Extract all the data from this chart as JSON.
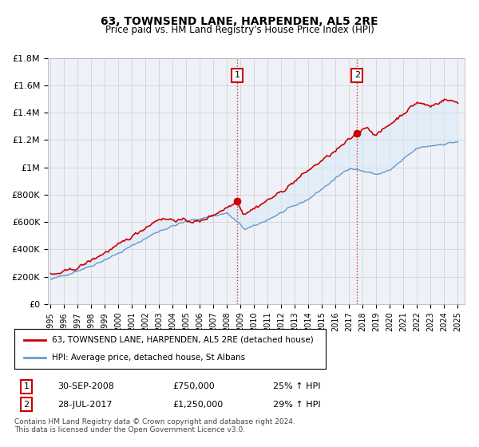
{
  "title": "63, TOWNSEND LANE, HARPENDEN, AL5 2RE",
  "subtitle": "Price paid vs. HM Land Registry's House Price Index (HPI)",
  "ylim": [
    0,
    1800000
  ],
  "xlim_start": 1994.8,
  "xlim_end": 2025.5,
  "yticks": [
    0,
    200000,
    400000,
    600000,
    800000,
    1000000,
    1200000,
    1400000,
    1600000,
    1800000
  ],
  "ytick_labels": [
    "£0",
    "£200K",
    "£400K",
    "£600K",
    "£800K",
    "£1M",
    "£1.2M",
    "£1.4M",
    "£1.6M",
    "£1.8M"
  ],
  "xticks": [
    1995,
    1996,
    1997,
    1998,
    1999,
    2000,
    2001,
    2002,
    2003,
    2004,
    2005,
    2006,
    2007,
    2008,
    2009,
    2010,
    2011,
    2012,
    2013,
    2014,
    2015,
    2016,
    2017,
    2018,
    2019,
    2020,
    2021,
    2022,
    2023,
    2024,
    2025
  ],
  "sale1_x": 2008.75,
  "sale1_y": 750000,
  "sale2_x": 2017.58,
  "sale2_y": 1250000,
  "line_color_red": "#cc0000",
  "line_color_blue": "#6699cc",
  "fill_color": "#daeaf7",
  "background_color": "#eef2f8",
  "plot_bg": "#ffffff",
  "legend1": "63, TOWNSEND LANE, HARPENDEN, AL5 2RE (detached house)",
  "legend2": "HPI: Average price, detached house, St Albans",
  "annotation1_date": "30-SEP-2008",
  "annotation1_price": "£750,000",
  "annotation1_hpi": "25% ↑ HPI",
  "annotation2_date": "28-JUL-2017",
  "annotation2_price": "£1,250,000",
  "annotation2_hpi": "29% ↑ HPI",
  "footer": "Contains HM Land Registry data © Crown copyright and database right 2024.\nThis data is licensed under the Open Government Licence v3.0."
}
